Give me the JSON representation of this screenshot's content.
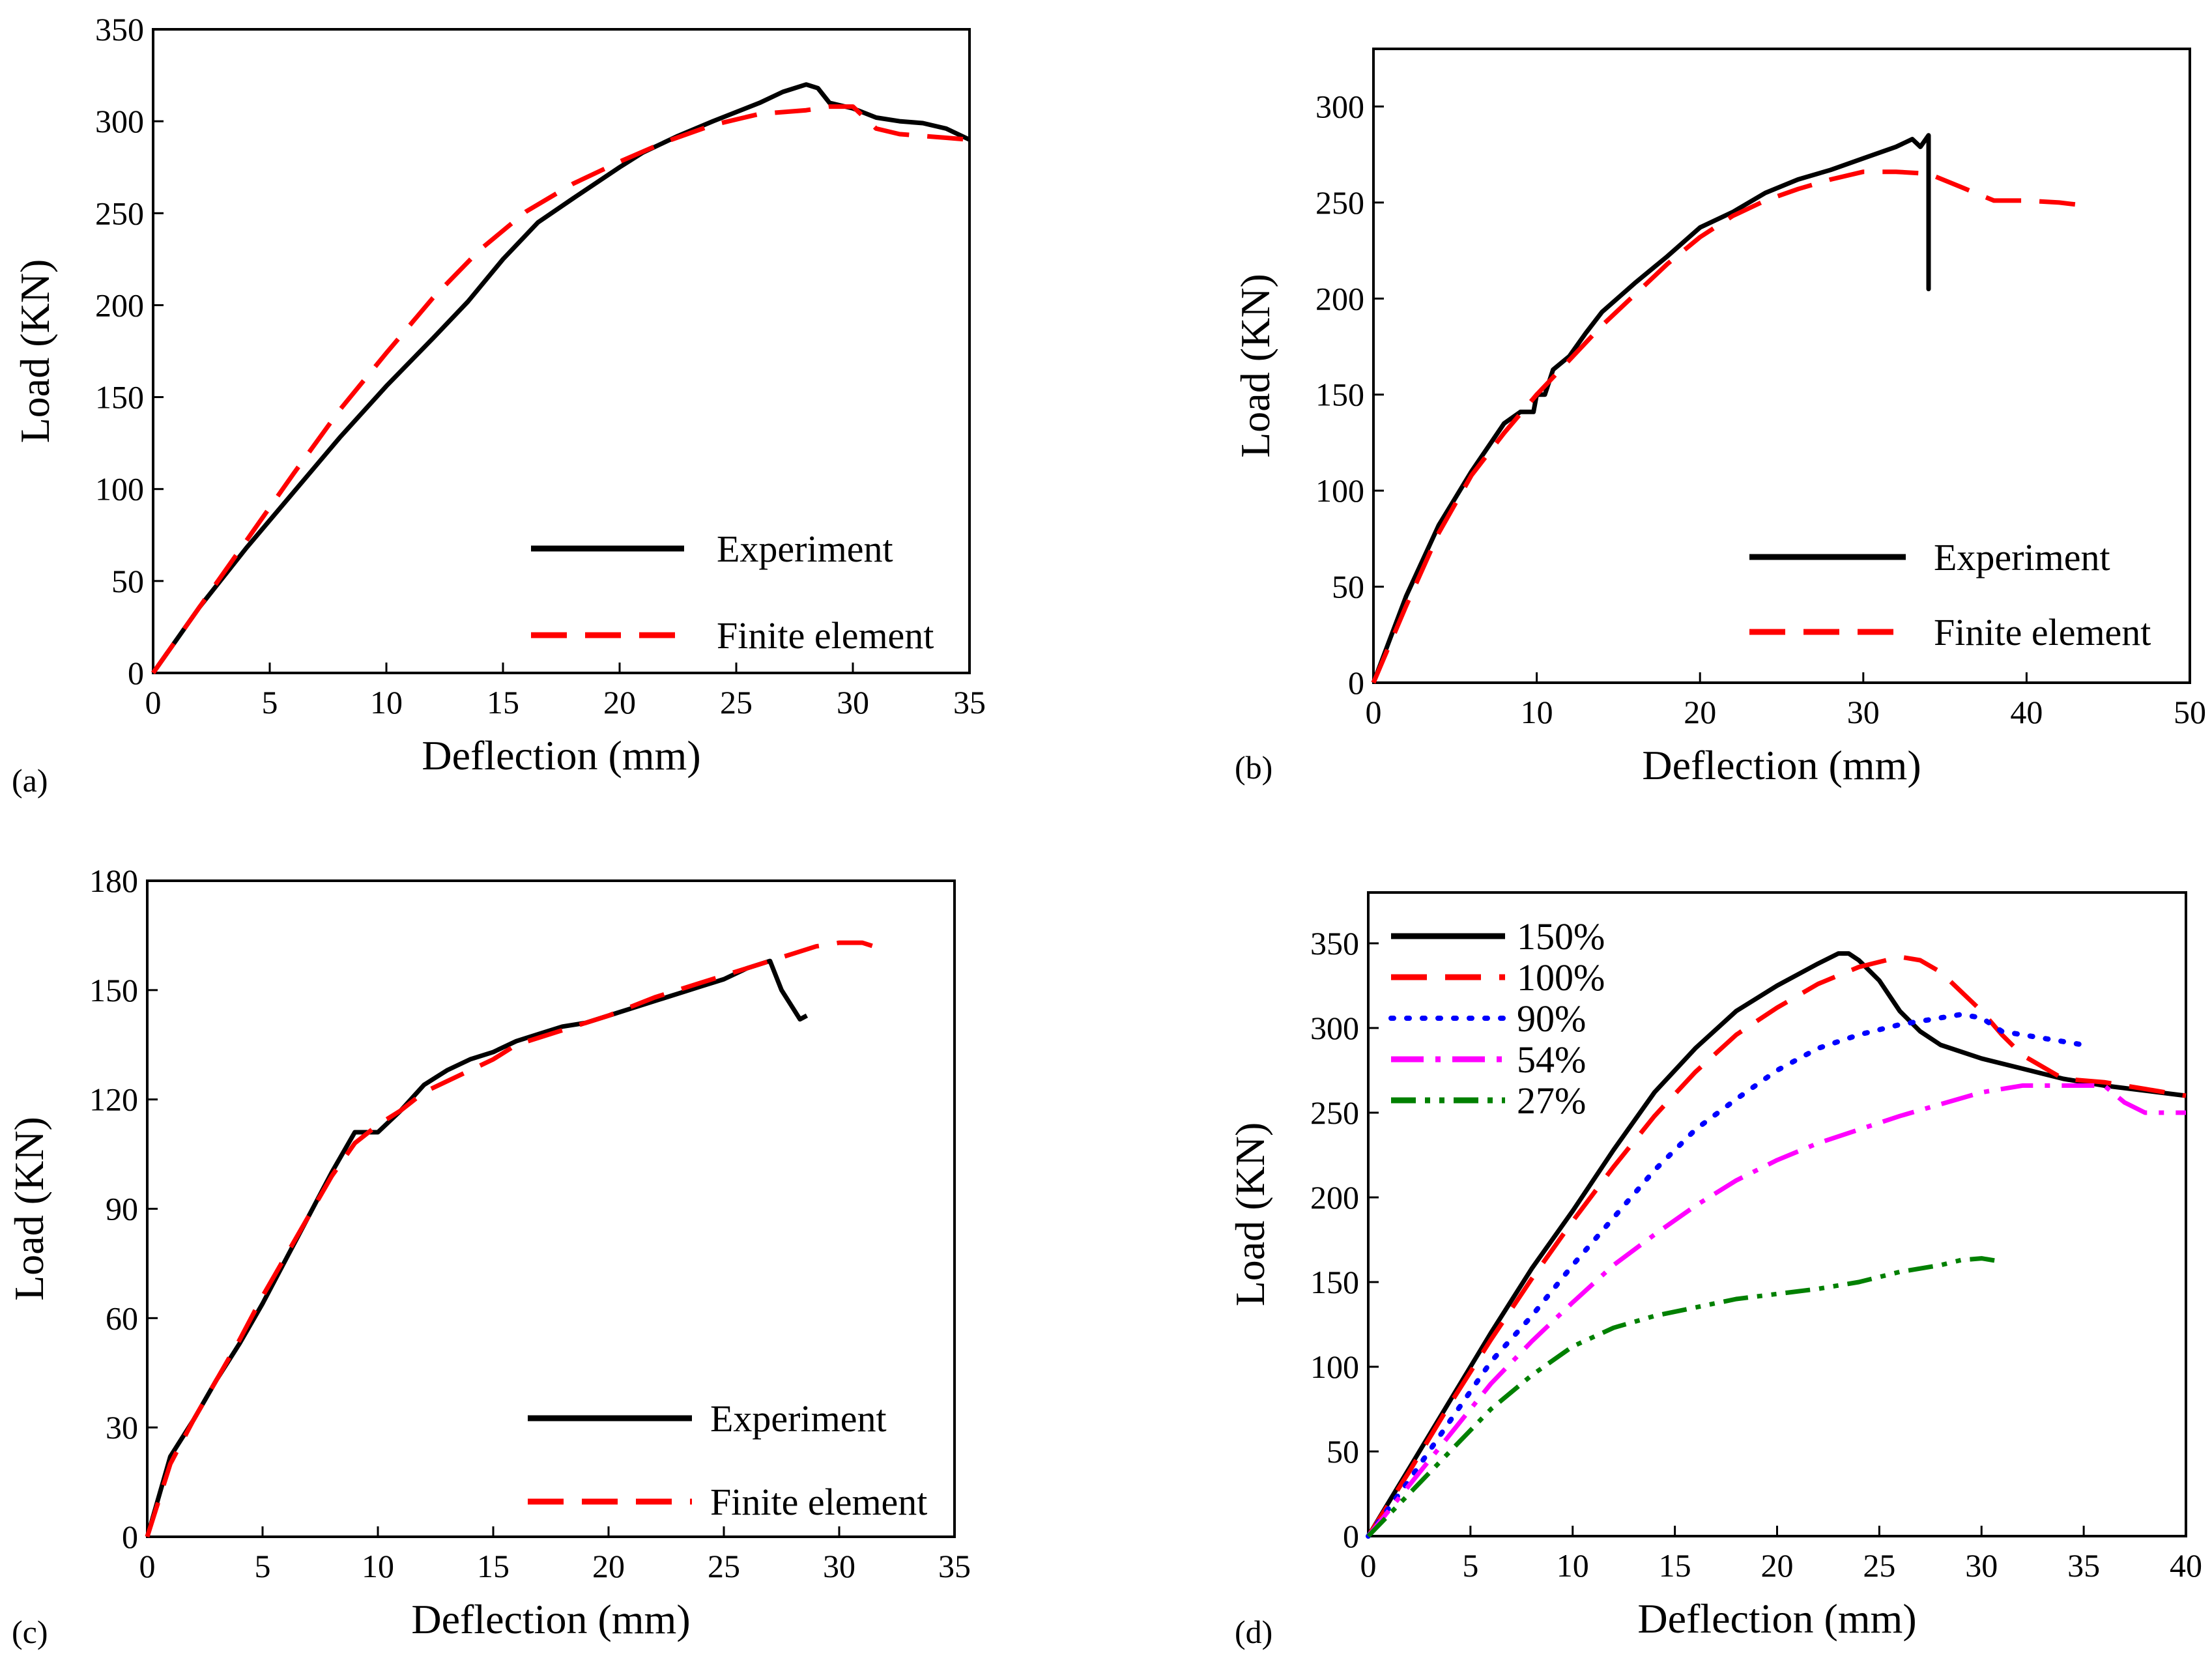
{
  "figure": {
    "panels": [
      {
        "id": "a",
        "label": "(a)"
      },
      {
        "id": "b",
        "label": "(b)"
      },
      {
        "id": "c",
        "label": "(c)"
      },
      {
        "id": "d",
        "label": "(d)"
      }
    ]
  },
  "colors": {
    "experiment": "#000000",
    "finite_element": "#ff0000",
    "s150": "#000000",
    "s100": "#ff0000",
    "s90": "#0000ff",
    "s54": "#ff00ff",
    "s27": "#008000"
  },
  "chart_data": [
    {
      "type": "line",
      "panel": "a",
      "label": "(a)",
      "xlabel": "Deflection (mm)",
      "ylabel": "Load (KN)",
      "xlim": [
        0,
        35
      ],
      "ylim": [
        0,
        350
      ],
      "xticks": [
        0,
        5,
        10,
        15,
        20,
        25,
        30,
        35
      ],
      "yticks": [
        0,
        50,
        100,
        150,
        200,
        250,
        300,
        350
      ],
      "series": [
        {
          "name": "Experiment",
          "style": "solid",
          "color": "#000000",
          "x": [
            0,
            2,
            4,
            6,
            8,
            10,
            12,
            13.5,
            15,
            16.5,
            18,
            20,
            21,
            22.5,
            24,
            25,
            26,
            27,
            28,
            28.5,
            29,
            30,
            31,
            32,
            33,
            34,
            35
          ],
          "y": [
            0,
            36,
            68,
            98,
            128,
            156,
            182,
            202,
            225,
            245,
            258,
            275,
            283,
            292,
            300,
            305,
            310,
            316,
            320,
            318,
            310,
            307,
            302,
            300,
            299,
            296,
            290
          ]
        },
        {
          "name": "Finite element",
          "style": "dashed",
          "color": "#ff0000",
          "x": [
            0,
            2,
            4,
            6,
            8,
            10,
            12,
            14,
            16,
            18,
            20,
            22,
            24,
            26,
            28,
            29,
            30,
            31,
            32,
            33,
            34,
            35
          ],
          "y": [
            0,
            36,
            72,
            108,
            143,
            174,
            204,
            230,
            251,
            266,
            278,
            289,
            298,
            304,
            306,
            308,
            308,
            296,
            293,
            292,
            291,
            290
          ]
        }
      ],
      "legend": {
        "position": "bottom-right",
        "entries": [
          "Experiment",
          "Finite element"
        ]
      }
    },
    {
      "type": "line",
      "panel": "b",
      "label": "(b)",
      "xlabel": "Deflection (mm)",
      "ylabel": "Load (KN)",
      "xlim": [
        0,
        50
      ],
      "ylim": [
        0,
        330
      ],
      "xticks": [
        0,
        10,
        20,
        30,
        40,
        50
      ],
      "yticks": [
        0,
        50,
        100,
        150,
        200,
        250,
        300
      ],
      "series": [
        {
          "name": "Experiment",
          "style": "solid",
          "color": "#000000",
          "x": [
            0,
            2,
            4,
            6,
            8,
            9,
            9.8,
            10,
            10.5,
            11,
            12,
            13,
            14,
            16,
            18,
            20,
            22,
            24,
            26,
            28,
            30,
            32,
            33,
            33.5,
            34,
            34,
            34
          ],
          "y": [
            0,
            45,
            82,
            110,
            135,
            141,
            141,
            150,
            150,
            163,
            170,
            182,
            193,
            208,
            222,
            237,
            245,
            255,
            262,
            267,
            273,
            279,
            283,
            279,
            285,
            205,
            285
          ]
        },
        {
          "name": "Finite element",
          "style": "dashed",
          "color": "#ff0000",
          "x": [
            0,
            2,
            4,
            6,
            8,
            10,
            12,
            14,
            16,
            18,
            20,
            22,
            24,
            26,
            28,
            30,
            32,
            34,
            36,
            38,
            40,
            42,
            44
          ],
          "y": [
            0,
            40,
            78,
            108,
            130,
            150,
            168,
            186,
            202,
            218,
            232,
            243,
            251,
            257,
            262,
            266,
            266,
            265,
            258,
            251,
            251,
            250,
            248
          ]
        }
      ],
      "legend": {
        "position": "bottom-right",
        "entries": [
          "Experiment",
          "Finite element"
        ]
      }
    },
    {
      "type": "line",
      "panel": "c",
      "label": "(c)",
      "xlabel": "Deflection (mm)",
      "ylabel": "Load (KN)",
      "xlim": [
        0,
        35
      ],
      "ylim": [
        0,
        180
      ],
      "xticks": [
        0,
        5,
        10,
        15,
        20,
        25,
        30,
        35
      ],
      "yticks": [
        0,
        30,
        60,
        90,
        120,
        150,
        180
      ],
      "series": [
        {
          "name": "Experiment",
          "style": "solid",
          "color": "#000000",
          "x": [
            0,
            1,
            2,
            3,
            4,
            5,
            6,
            7,
            8,
            9,
            10,
            11,
            12,
            13,
            14,
            15,
            16,
            17,
            18,
            19,
            20,
            21,
            22,
            23,
            24,
            25,
            26,
            27,
            27.5,
            28,
            28.3,
            28.6
          ],
          "y": [
            0,
            22,
            32,
            43,
            53,
            64,
            76,
            88,
            100,
            111,
            111,
            117,
            124,
            128,
            131,
            133,
            136,
            138,
            140,
            141,
            143,
            145,
            147,
            149,
            151,
            153,
            156,
            158,
            150,
            145,
            142,
            143
          ]
        },
        {
          "name": "Finite element",
          "style": "dashed",
          "color": "#ff0000",
          "x": [
            0,
            1,
            2,
            3,
            4,
            5,
            6,
            7,
            8,
            9,
            10,
            11,
            12,
            13,
            14,
            15,
            16,
            18,
            20,
            22,
            24,
            26,
            28,
            29,
            30,
            31,
            31.5
          ],
          "y": [
            0,
            20,
            32,
            43,
            54,
            66,
            77,
            88,
            99,
            108,
            113,
            117,
            122,
            125,
            128,
            131,
            135,
            139,
            143,
            148,
            152,
            156,
            160,
            162,
            163,
            163,
            162
          ]
        }
      ],
      "legend": {
        "position": "bottom-right",
        "entries": [
          "Experiment",
          "Finite element"
        ]
      }
    },
    {
      "type": "line",
      "panel": "d",
      "label": "(d)",
      "xlabel": "Deflection (mm)",
      "ylabel": "Load (KN)",
      "xlim": [
        0,
        40
      ],
      "ylim": [
        0,
        380
      ],
      "xticks": [
        0,
        5,
        10,
        15,
        20,
        25,
        30,
        35,
        40
      ],
      "yticks": [
        0,
        50,
        100,
        150,
        200,
        250,
        300,
        350
      ],
      "series": [
        {
          "name": "150%",
          "style": "solid",
          "color": "#000000",
          "x": [
            0,
            2,
            4,
            6,
            8,
            10,
            12,
            14,
            16,
            18,
            20,
            22,
            23,
            23.5,
            24,
            25,
            26,
            27,
            28,
            30,
            32,
            34,
            36,
            38,
            40
          ],
          "y": [
            0,
            40,
            80,
            120,
            158,
            192,
            228,
            262,
            288,
            310,
            325,
            338,
            344,
            344,
            340,
            328,
            310,
            298,
            290,
            282,
            276,
            270,
            266,
            263,
            260
          ]
        },
        {
          "name": "100%",
          "style": "dashed",
          "color": "#ff0000",
          "x": [
            0,
            2,
            4,
            6,
            8,
            10,
            12,
            14,
            16,
            18,
            20,
            22,
            24,
            26,
            27,
            28,
            30,
            31,
            32,
            34,
            36,
            38,
            40
          ],
          "y": [
            0,
            38,
            78,
            116,
            152,
            186,
            218,
            248,
            274,
            296,
            312,
            326,
            336,
            342,
            340,
            333,
            310,
            296,
            284,
            270,
            268,
            264,
            260
          ]
        },
        {
          "name": "90%",
          "style": "dotted",
          "color": "#0000ff",
          "x": [
            0,
            2,
            4,
            6,
            8,
            10,
            12,
            14,
            16,
            18,
            20,
            22,
            24,
            26,
            28,
            29,
            30,
            31,
            32,
            34,
            35
          ],
          "y": [
            0,
            33,
            68,
            103,
            130,
            160,
            188,
            216,
            240,
            258,
            275,
            288,
            296,
            302,
            306,
            308,
            306,
            298,
            296,
            292,
            290
          ]
        },
        {
          "name": "54%",
          "style": "dashdot",
          "color": "#ff00ff",
          "x": [
            0,
            2,
            4,
            6,
            8,
            10,
            12,
            14,
            16,
            18,
            20,
            22,
            24,
            26,
            28,
            30,
            32,
            34,
            36,
            37,
            38,
            40
          ],
          "y": [
            0,
            30,
            60,
            90,
            115,
            138,
            160,
            178,
            195,
            210,
            222,
            232,
            240,
            248,
            255,
            262,
            266,
            266,
            266,
            256,
            250,
            250
          ]
        },
        {
          "name": "27%",
          "style": "dashdotdot",
          "color": "#008000",
          "x": [
            0,
            2,
            4,
            6,
            8,
            10,
            12,
            14,
            16,
            18,
            20,
            22,
            24,
            26,
            28,
            29,
            30,
            31
          ],
          "y": [
            0,
            25,
            50,
            75,
            95,
            112,
            123,
            130,
            135,
            140,
            143,
            146,
            150,
            156,
            160,
            163,
            164,
            162
          ]
        }
      ],
      "legend": {
        "position": "top-left",
        "entries": [
          "150%",
          "100%",
          "90%",
          "54%",
          "27%"
        ]
      }
    }
  ]
}
